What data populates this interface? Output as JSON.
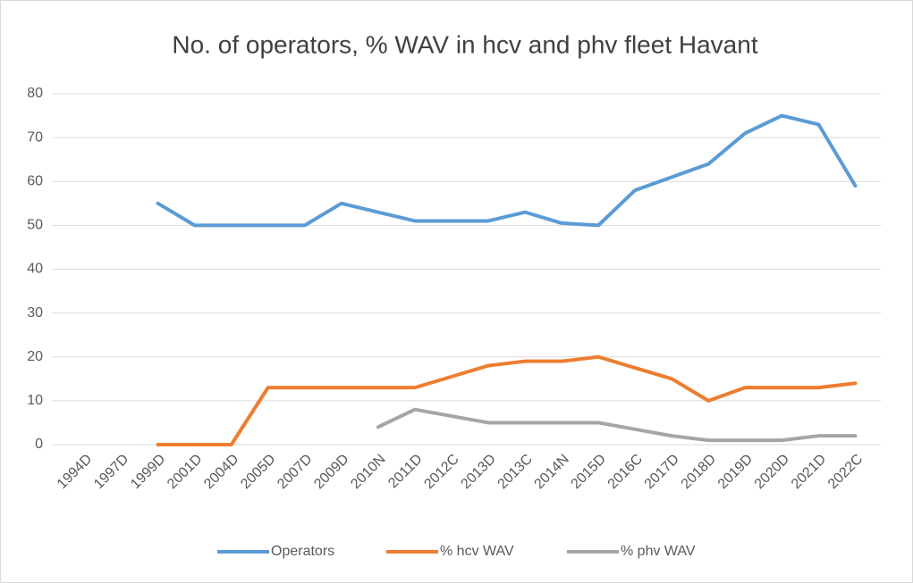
{
  "chart_data": {
    "type": "line",
    "title": "No. of operators, % WAV in hcv and phv fleet Havant",
    "categories": [
      "1994D",
      "1997D",
      "1999D",
      "2001D",
      "2004D",
      "2005D",
      "2007D",
      "2009D",
      "2010N",
      "2011D",
      "2012C",
      "2013D",
      "2013C",
      "2014N",
      "2015D",
      "2016C",
      "2017D",
      "2018D",
      "2019D",
      "2020D",
      "2021D",
      "2022C"
    ],
    "series": [
      {
        "name": "Operators",
        "color": "#5b9bd5",
        "values": [
          null,
          null,
          55,
          50,
          50,
          50,
          50,
          55,
          53,
          51,
          51,
          51,
          53,
          50.5,
          50,
          58,
          61,
          64,
          71,
          75,
          73,
          59
        ]
      },
      {
        "name": "% hcv WAV",
        "color": "#ed7d31",
        "values": [
          null,
          null,
          0,
          0,
          0,
          13,
          13,
          13,
          13,
          13,
          15.5,
          18,
          19,
          19,
          20,
          17.5,
          15,
          10,
          13,
          13,
          13,
          14
        ]
      },
      {
        "name": "% phv WAV",
        "color": "#a5a5a5",
        "values": [
          null,
          null,
          null,
          null,
          null,
          null,
          null,
          null,
          4,
          8,
          6.5,
          5,
          5,
          5,
          5,
          3.5,
          2,
          1,
          1,
          1,
          2,
          2
        ]
      }
    ],
    "ylim": [
      0,
      80
    ],
    "yticks": [
      0,
      10,
      20,
      30,
      40,
      50,
      60,
      70,
      80
    ],
    "grid": true,
    "legend": "bottom"
  }
}
